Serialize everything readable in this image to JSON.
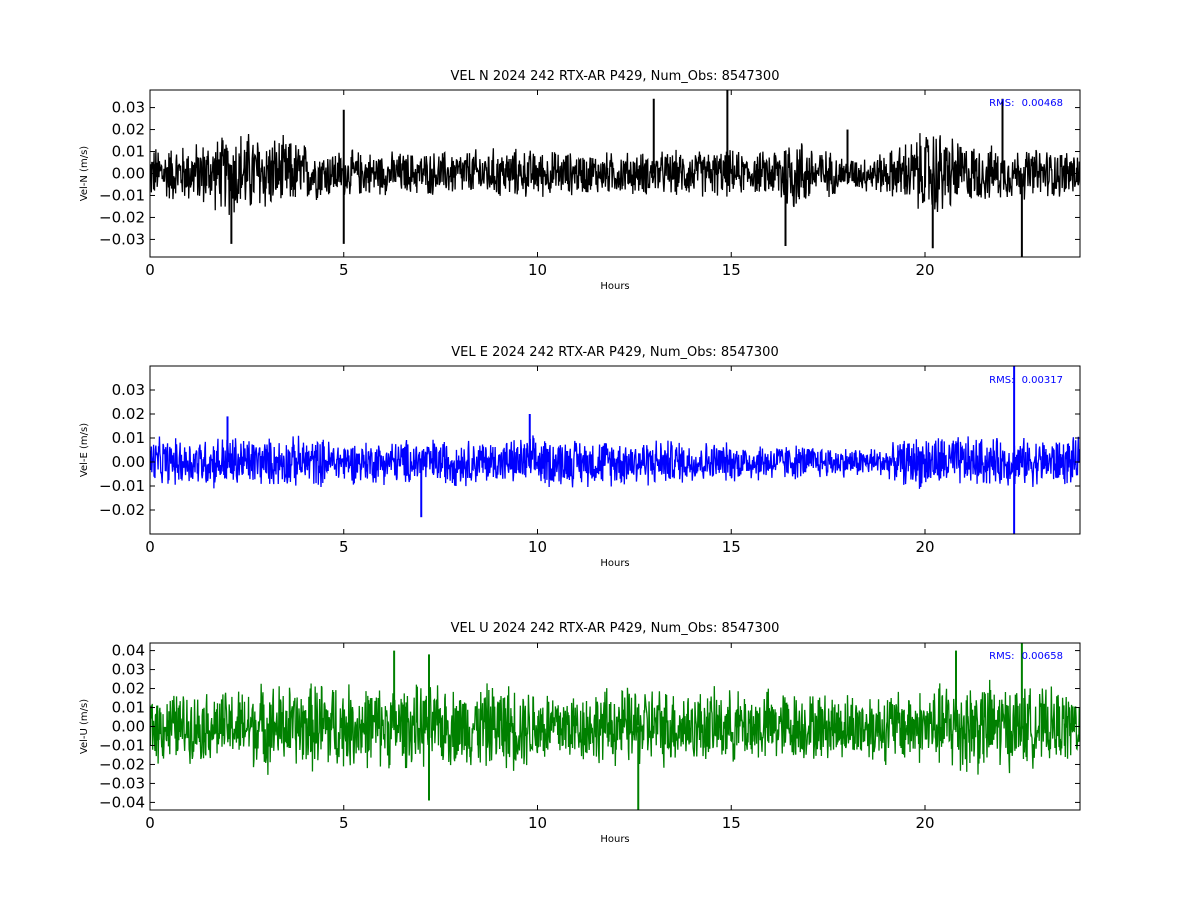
{
  "chart_data": [
    {
      "type": "line",
      "title": "VEL N 2024 242 RTX-AR  P429, Num_Obs: 8547300",
      "xlabel": "Hours",
      "ylabel": "Vel-N (m/s)",
      "xlim": [
        0,
        24
      ],
      "ylim": [
        -0.038,
        0.038
      ],
      "xticks": [
        0,
        5,
        10,
        15,
        20
      ],
      "xtick_labels": [
        "0",
        "5",
        "10",
        "15",
        "20"
      ],
      "yticks": [
        -0.03,
        -0.02,
        -0.01,
        0.0,
        0.01,
        0.02,
        0.03
      ],
      "ytick_labels": [
        "−0.03",
        "−0.02",
        "−0.01",
        "0.00",
        "0.01",
        "0.02",
        "0.03"
      ],
      "color": "#000000",
      "rms_label": "RMS:",
      "rms_value": "0.00468",
      "rms_color": "#0000ff",
      "envelope": {
        "hours": [
          0,
          1,
          2,
          2.1,
          3,
          4,
          4.1,
          5,
          6,
          7,
          8,
          9,
          10,
          11,
          12,
          13,
          14,
          15,
          15.5,
          16,
          16.5,
          17,
          17.5,
          18,
          19,
          20,
          20.3,
          21,
          22,
          23,
          24
        ],
        "amplitude": [
          0.014,
          0.015,
          0.02,
          0.024,
          0.02,
          0.016,
          0.014,
          0.012,
          0.011,
          0.011,
          0.012,
          0.013,
          0.012,
          0.011,
          0.011,
          0.011,
          0.012,
          0.012,
          0.01,
          0.012,
          0.022,
          0.016,
          0.012,
          0.008,
          0.011,
          0.022,
          0.024,
          0.016,
          0.013,
          0.013,
          0.012
        ]
      },
      "spikes": [
        {
          "x": 2.1,
          "y": -0.032
        },
        {
          "x": 5.0,
          "y": 0.029
        },
        {
          "x": 5.0,
          "y": -0.032
        },
        {
          "x": 13.0,
          "y": 0.034
        },
        {
          "x": 14.9,
          "y": 0.038
        },
        {
          "x": 16.4,
          "y": -0.033
        },
        {
          "x": 18.0,
          "y": 0.02
        },
        {
          "x": 20.2,
          "y": -0.034
        },
        {
          "x": 22.0,
          "y": 0.034
        },
        {
          "x": 22.5,
          "y": -0.038
        }
      ]
    },
    {
      "type": "line",
      "title": "VEL E 2024 242 RTX-AR  P429, Num_Obs: 8547300",
      "xlabel": "Hours",
      "ylabel": "Vel-E (m/s)",
      "xlim": [
        0,
        24
      ],
      "ylim": [
        -0.03,
        0.04
      ],
      "xticks": [
        0,
        5,
        10,
        15,
        20
      ],
      "xtick_labels": [
        "0",
        "5",
        "10",
        "15",
        "20"
      ],
      "yticks": [
        -0.02,
        -0.01,
        0.0,
        0.01,
        0.02,
        0.03
      ],
      "ytick_labels": [
        "−0.02",
        "−0.01",
        "0.00",
        "0.01",
        "0.02",
        "0.03"
      ],
      "color": "#0000ff",
      "rms_label": "RMS:",
      "rms_value": "0.00317",
      "rms_color": "#0000ff",
      "envelope": {
        "hours": [
          0,
          1,
          2,
          3,
          4,
          5,
          6,
          7,
          8,
          9,
          10,
          11,
          12,
          13,
          14,
          15,
          16,
          17,
          18,
          19,
          19.5,
          20,
          21,
          22,
          23,
          24
        ],
        "amplitude": [
          0.011,
          0.011,
          0.013,
          0.011,
          0.012,
          0.01,
          0.01,
          0.011,
          0.011,
          0.01,
          0.012,
          0.011,
          0.011,
          0.011,
          0.01,
          0.009,
          0.009,
          0.008,
          0.007,
          0.007,
          0.011,
          0.013,
          0.012,
          0.011,
          0.011,
          0.011
        ]
      },
      "spikes": [
        {
          "x": 2.0,
          "y": 0.019
        },
        {
          "x": 7.0,
          "y": -0.023
        },
        {
          "x": 9.8,
          "y": 0.02
        },
        {
          "x": 22.3,
          "y": 0.04
        },
        {
          "x": 22.3,
          "y": -0.03
        }
      ]
    },
    {
      "type": "line",
      "title": "VEL U 2024 242 RTX-AR  P429, Num_Obs: 8547300",
      "xlabel": "Hours",
      "ylabel": "Vel-U (m/s)",
      "xlim": [
        0,
        24
      ],
      "ylim": [
        -0.044,
        0.044
      ],
      "xticks": [
        0,
        5,
        10,
        15,
        20
      ],
      "xtick_labels": [
        "0",
        "5",
        "10",
        "15",
        "20"
      ],
      "yticks": [
        -0.04,
        -0.03,
        -0.02,
        -0.01,
        0.0,
        0.01,
        0.02,
        0.03,
        0.04
      ],
      "ytick_labels": [
        "−0.04",
        "−0.03",
        "−0.02",
        "−0.01",
        "0.00",
        "0.01",
        "0.02",
        "0.03",
        "0.04"
      ],
      "color": "#008000",
      "rms_label": "RMS:",
      "rms_value": "0.00658",
      "rms_color": "#0000ff",
      "envelope": {
        "hours": [
          0,
          1,
          2,
          3,
          4,
          4.5,
          5,
          6,
          7,
          8,
          9,
          10,
          11,
          12,
          13,
          14,
          15,
          16,
          17,
          18,
          19,
          20,
          21,
          22,
          23,
          24
        ],
        "amplitude": [
          0.022,
          0.02,
          0.021,
          0.026,
          0.024,
          0.03,
          0.025,
          0.024,
          0.024,
          0.023,
          0.026,
          0.024,
          0.021,
          0.023,
          0.024,
          0.022,
          0.021,
          0.022,
          0.02,
          0.02,
          0.022,
          0.022,
          0.03,
          0.026,
          0.022,
          0.021
        ]
      },
      "spikes": [
        {
          "x": 6.3,
          "y": 0.04
        },
        {
          "x": 7.2,
          "y": 0.038
        },
        {
          "x": 7.2,
          "y": -0.039
        },
        {
          "x": 12.6,
          "y": -0.044
        },
        {
          "x": 20.8,
          "y": 0.04
        },
        {
          "x": 22.5,
          "y": 0.044
        }
      ]
    }
  ]
}
